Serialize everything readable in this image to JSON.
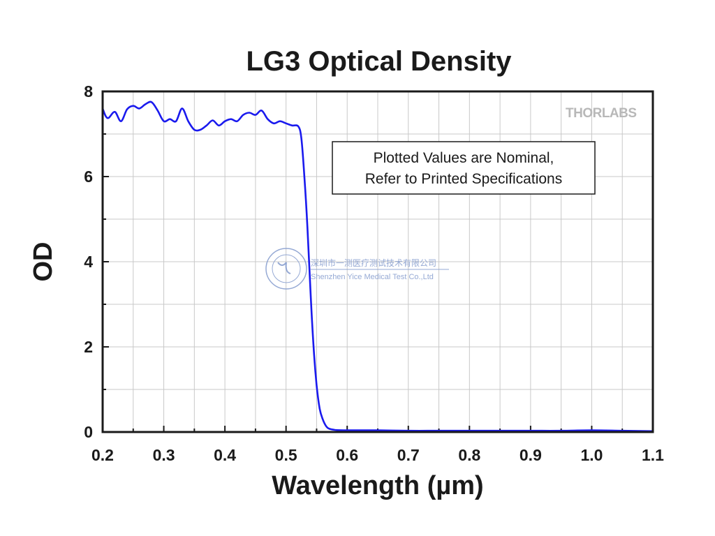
{
  "chart_data": {
    "type": "line",
    "title": "LG3 Optical Density",
    "xlabel": "Wavelength (µm)",
    "ylabel": "OD",
    "xlim": [
      0.2,
      1.1
    ],
    "ylim": [
      0,
      8
    ],
    "x_ticks": [
      "0.2",
      "0.3",
      "0.4",
      "0.5",
      "0.6",
      "0.7",
      "0.8",
      "0.9",
      "1.0",
      "1.1"
    ],
    "y_ticks": [
      "0",
      "2",
      "4",
      "6",
      "8"
    ],
    "grid": true,
    "line_color": "#1a1aee",
    "annotation": [
      "Plotted Values are Nominal,",
      "Refer to Printed Specifications"
    ],
    "brand": "THORLABS",
    "watermark": {
      "chinese": "深圳市一测医疗测试技术有限公司",
      "english": "Shenzhen Yice Medical Test Co.,Ltd"
    },
    "series": [
      {
        "x": [
          0.2,
          0.205,
          0.21,
          0.22,
          0.23,
          0.24,
          0.25,
          0.26,
          0.27,
          0.28,
          0.29,
          0.3,
          0.31,
          0.32,
          0.33,
          0.34,
          0.35,
          0.36,
          0.37,
          0.38,
          0.39,
          0.4,
          0.41,
          0.42,
          0.43,
          0.44,
          0.45,
          0.46,
          0.47,
          0.48,
          0.49,
          0.5,
          0.51,
          0.52,
          0.525,
          0.53,
          0.535,
          0.54,
          0.545,
          0.55,
          0.555,
          0.56,
          0.565,
          0.57,
          0.58,
          0.6,
          0.65,
          0.7,
          0.75,
          0.8,
          0.85,
          0.9,
          0.95,
          1.0,
          1.05,
          1.1
        ],
        "y": [
          7.6,
          7.42,
          7.38,
          7.52,
          7.3,
          7.58,
          7.66,
          7.6,
          7.7,
          7.75,
          7.55,
          7.3,
          7.35,
          7.3,
          7.6,
          7.3,
          7.1,
          7.1,
          7.2,
          7.32,
          7.2,
          7.3,
          7.35,
          7.3,
          7.45,
          7.5,
          7.45,
          7.55,
          7.35,
          7.25,
          7.3,
          7.25,
          7.2,
          7.18,
          6.9,
          6.0,
          4.8,
          3.3,
          2.0,
          1.1,
          0.55,
          0.3,
          0.15,
          0.08,
          0.05,
          0.04,
          0.04,
          0.03,
          0.03,
          0.03,
          0.03,
          0.03,
          0.03,
          0.04,
          0.03,
          0.02
        ]
      }
    ]
  }
}
